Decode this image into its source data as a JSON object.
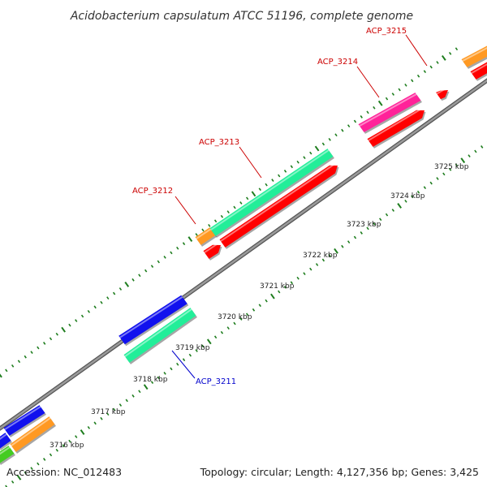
{
  "title": "Acidobacterium capsulatum ATCC 51196, complete genome",
  "footer": {
    "accession": "Accession: NC_012483",
    "stats": "Topology: circular; Length: 4,127,356 bp; Genes: 3,425"
  },
  "colors": {
    "backbone": "#888888",
    "tick": "#1e7d1e",
    "label_red": "#cc0000",
    "label_blue": "#0000cc",
    "cds": "#ff0000",
    "gene_green": "#22ee99",
    "gene_blue": "#1111ee",
    "gene_orange": "#ff9922",
    "gene_pink": "#ff2299",
    "gene_lime": "#44cc22"
  },
  "ticks": [
    "3716 kbp",
    "3717 kbp",
    "3718 kbp",
    "3719 kbp",
    "3720 kbp",
    "3721 kbp",
    "3722 kbp",
    "3723 kbp",
    "3724 kbp",
    "3725 kbp"
  ],
  "gene_labels": [
    "ACP_3211",
    "ACP_3212",
    "ACP_3213",
    "ACP_3214",
    "ACP_3215"
  ]
}
